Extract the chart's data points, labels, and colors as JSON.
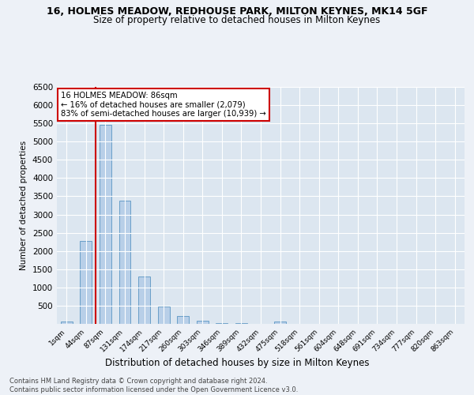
{
  "title": "16, HOLMES MEADOW, REDHOUSE PARK, MILTON KEYNES, MK14 5GF",
  "subtitle": "Size of property relative to detached houses in Milton Keynes",
  "xlabel": "Distribution of detached houses by size in Milton Keynes",
  "ylabel": "Number of detached properties",
  "categories": [
    "1sqm",
    "44sqm",
    "87sqm",
    "131sqm",
    "174sqm",
    "217sqm",
    "260sqm",
    "303sqm",
    "346sqm",
    "389sqm",
    "432sqm",
    "475sqm",
    "518sqm",
    "561sqm",
    "604sqm",
    "648sqm",
    "691sqm",
    "734sqm",
    "777sqm",
    "820sqm",
    "863sqm"
  ],
  "values": [
    60,
    2280,
    5450,
    3380,
    1300,
    480,
    215,
    90,
    30,
    15,
    10,
    60,
    5,
    5,
    5,
    5,
    5,
    5,
    5,
    5,
    5
  ],
  "bar_color": "#b8cfe8",
  "bar_edge_color": "#6a9fc8",
  "vline_index": 1.5,
  "annotation_title": "16 HOLMES MEADOW: 86sqm",
  "annotation_line1": "← 16% of detached houses are smaller (2,079)",
  "annotation_line2": "83% of semi-detached houses are larger (10,939) →",
  "annotation_box_color": "#ffffff",
  "annotation_box_edge": "#cc0000",
  "vline_color": "#cc0000",
  "ylim": [
    0,
    6500
  ],
  "yticks": [
    0,
    500,
    1000,
    1500,
    2000,
    2500,
    3000,
    3500,
    4000,
    4500,
    5000,
    5500,
    6000,
    6500
  ],
  "footer_line1": "Contains HM Land Registry data © Crown copyright and database right 2024.",
  "footer_line2": "Contains public sector information licensed under the Open Government Licence v3.0.",
  "bg_color": "#edf1f7",
  "plot_bg_color": "#dce6f0",
  "title_fontsize": 9,
  "subtitle_fontsize": 8.5
}
